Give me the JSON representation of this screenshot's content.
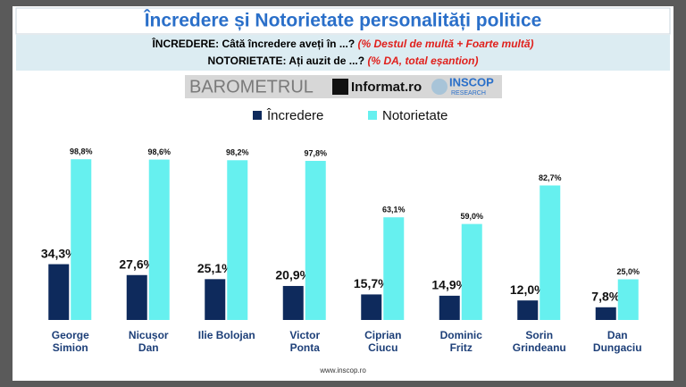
{
  "chart_data": {
    "type": "bar",
    "title": "Încredere și Notorietate personalități politice",
    "subtitle_lines": [
      {
        "label": "ÎNCREDERE: Câtă încredere aveți în ...?",
        "note": "(% Destul de multă + Foarte multă)"
      },
      {
        "label": "NOTORIETATE: Ați auzit de ...?",
        "note": "(% DA, total eșantion)"
      }
    ],
    "logos": [
      "BAROMETRUL",
      "Informat.ro",
      "INSCOP",
      "RESEARCH"
    ],
    "categories": [
      "George Simion",
      "Nicușor Dan",
      "Ilie Bolojan",
      "Victor Ponta",
      "Ciprian Ciucu",
      "Dominic Fritz",
      "Sorin Grindeanu",
      "Dan Dungaciu"
    ],
    "series": [
      {
        "name": "Încredere",
        "color": "#0e2a5c",
        "values": [
          34.3,
          27.6,
          25.1,
          20.9,
          15.7,
          14.9,
          12.0,
          7.8
        ],
        "value_labels": [
          "34,3%",
          "27,6%",
          "25,1%",
          "20,9%",
          "15,7%",
          "14,9%",
          "12,0%",
          "7,8%"
        ]
      },
      {
        "name": "Notorietate",
        "color": "#66f0ef",
        "values": [
          98.8,
          98.6,
          98.2,
          97.8,
          63.1,
          59.0,
          82.7,
          25.0
        ],
        "value_labels": [
          "98,8%",
          "98,6%",
          "98,2%",
          "97,8%",
          "63,1%",
          "59,0%",
          "82,7%",
          "25,0%"
        ]
      }
    ],
    "ylim": [
      0,
      100
    ],
    "footer": "www.inscop.ro"
  }
}
